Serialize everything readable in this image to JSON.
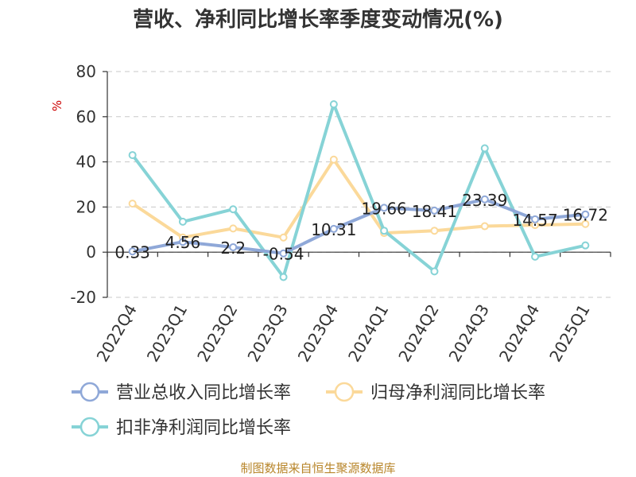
{
  "chart_data": {
    "type": "line",
    "title": "营收、净利同比增长率季度变动情况(%)",
    "ylabel": "%",
    "categories": [
      "2022Q4",
      "2023Q1",
      "2023Q2",
      "2023Q3",
      "2023Q4",
      "2024Q1",
      "2024Q2",
      "2024Q3",
      "2024Q4",
      "2025Q1"
    ],
    "ylim": [
      -20,
      80
    ],
    "yticks": [
      -20,
      0,
      20,
      40,
      60,
      80
    ],
    "grid": true,
    "legend_position": "bottom",
    "series": [
      {
        "name": "营业总收入同比增长率",
        "color": "#8fa8d8",
        "labeled": true,
        "values": [
          0.33,
          4.56,
          2.2,
          -0.54,
          10.31,
          19.66,
          18.41,
          23.39,
          14.57,
          16.72
        ],
        "labels": [
          "0.33",
          "4.56",
          "2.2",
          "-0.54",
          "10.31",
          "19.66",
          "18.41",
          "23.39",
          "14.57",
          "16.72"
        ]
      },
      {
        "name": "归母净利润同比增长率",
        "color": "#fbd99a",
        "labeled": false,
        "values": [
          21.5,
          6.5,
          10.5,
          6.5,
          41,
          8.5,
          9.5,
          11.5,
          12,
          12.5
        ]
      },
      {
        "name": "扣非净利润同比增长率",
        "color": "#86d3d6",
        "labeled": false,
        "values": [
          43,
          13.5,
          19,
          -11,
          65.5,
          9.5,
          -8.5,
          46,
          -2,
          3
        ]
      }
    ],
    "source": "制图数据来自恒生聚源数据库"
  }
}
